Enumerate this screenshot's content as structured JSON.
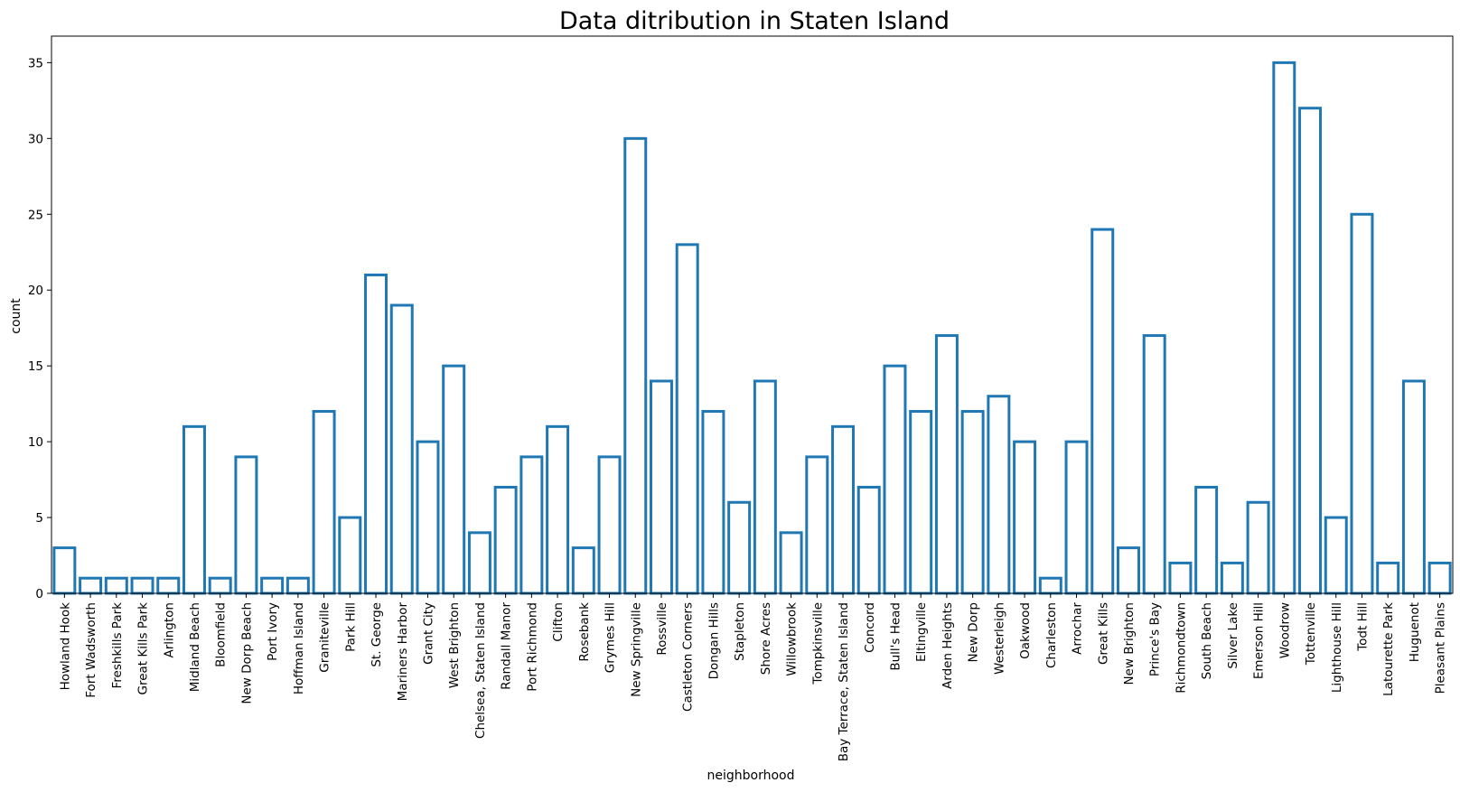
{
  "chart_data": {
    "type": "bar",
    "title": "Data ditribution in Staten Island",
    "xlabel": "neighborhood",
    "ylabel": "count",
    "ylim": [
      0,
      36.75
    ],
    "yticks": [
      0,
      5,
      10,
      15,
      20,
      25,
      30,
      35
    ],
    "grid": false,
    "bar_style": "outline",
    "colors": {
      "bar_edge": "#1f77b4",
      "bar_fill": "#ffffff",
      "axis": "#000000"
    },
    "categories": [
      "Howland Hook",
      "Fort Wadsworth",
      "Freshkills Park",
      "Great Kills Park",
      "Arlington",
      "Midland Beach",
      "Bloomfield",
      "New Dorp Beach",
      "Port Ivory",
      "Hoffman Island",
      "Graniteville",
      "Park Hill",
      "St. George",
      "Mariners Harbor",
      "Grant City",
      "West Brighton",
      "Chelsea, Staten Island",
      "Randall Manor",
      "Port Richmond",
      "Clifton",
      "Rosebank",
      "Grymes Hill",
      "New Springville",
      "Rossville",
      "Castleton Corners",
      "Dongan Hills",
      "Stapleton",
      "Shore Acres",
      "Willowbrook",
      "Tompkinsville",
      "Bay Terrace, Staten Island",
      "Concord",
      "Bull's Head",
      "Eltingville",
      "Arden Heights",
      "New Dorp",
      "Westerleigh",
      "Oakwood",
      "Charleston",
      "Arrochar",
      "Great Kills",
      "New Brighton",
      "Prince's Bay",
      "Richmondtown",
      "South Beach",
      "Silver Lake",
      "Emerson Hill",
      "Woodrow",
      "Tottenville",
      "Lighthouse Hill",
      "Todt Hill",
      "Latourette Park",
      "Huguenot",
      "Pleasant Plains"
    ],
    "values": [
      3,
      1,
      1,
      1,
      1,
      11,
      1,
      9,
      1,
      1,
      12,
      5,
      21,
      19,
      10,
      15,
      4,
      7,
      9,
      11,
      3,
      9,
      30,
      14,
      23,
      12,
      6,
      14,
      4,
      9,
      11,
      7,
      15,
      12,
      17,
      12,
      13,
      10,
      1,
      10,
      24,
      3,
      17,
      2,
      7,
      2,
      6,
      35,
      32,
      5,
      25,
      2,
      14,
      2
    ]
  }
}
